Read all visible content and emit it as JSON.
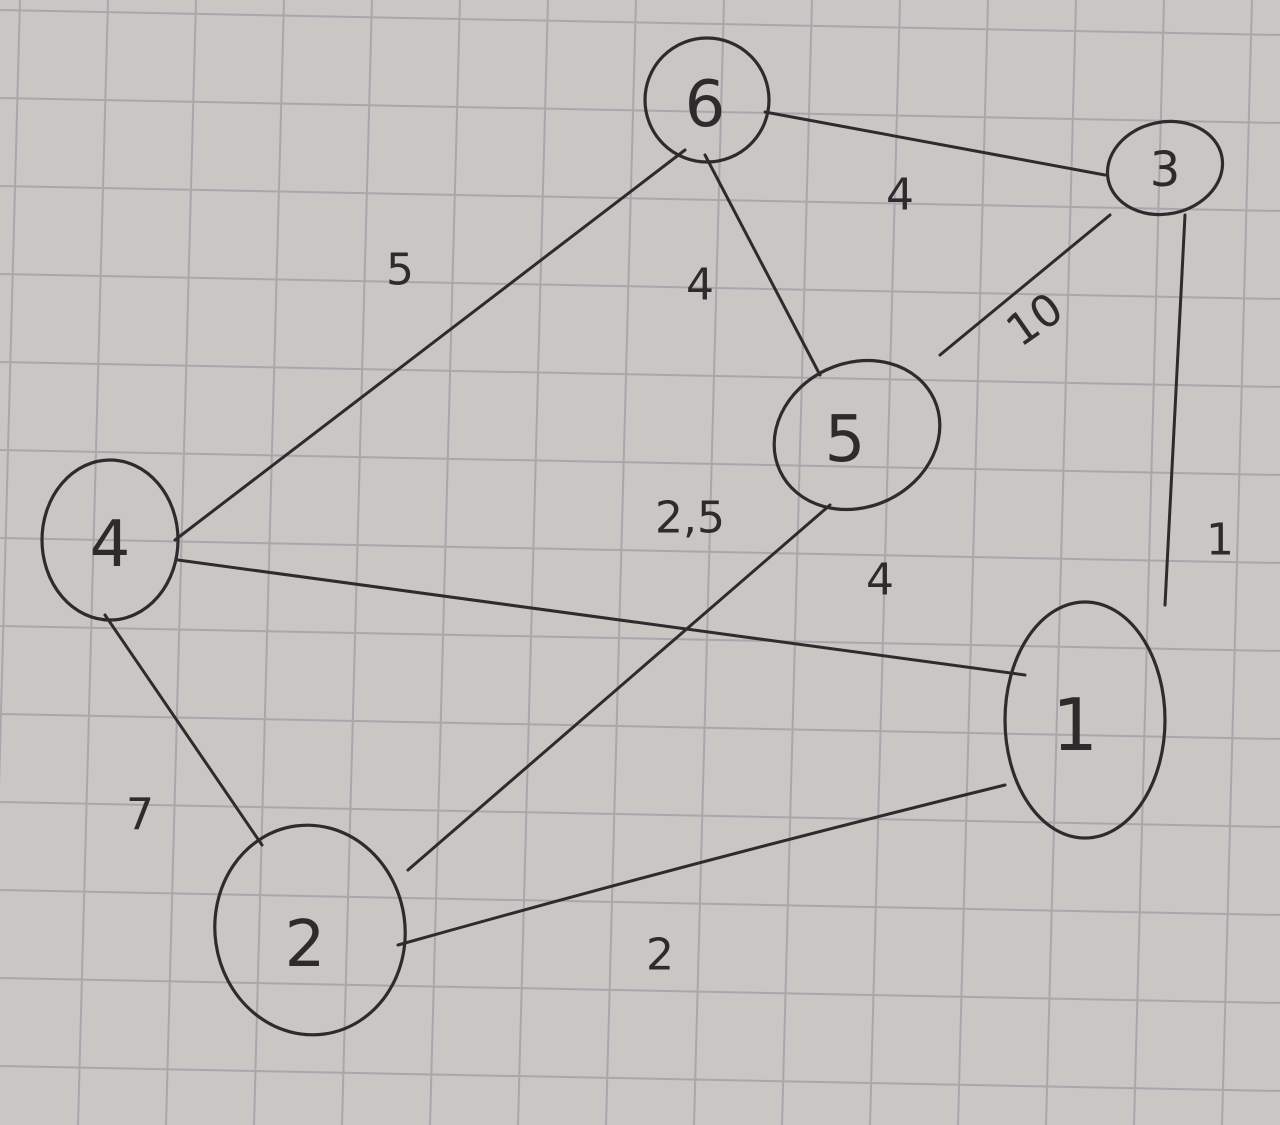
{
  "colors": {
    "paper": "#c9c6c4",
    "grid": "#a6a8ad",
    "ink": "#2d2b2c"
  },
  "graph": {
    "nodes": [
      {
        "id": "n1",
        "label": "1"
      },
      {
        "id": "n2",
        "label": "2"
      },
      {
        "id": "n3",
        "label": "3"
      },
      {
        "id": "n4",
        "label": "4"
      },
      {
        "id": "n5",
        "label": "5"
      },
      {
        "id": "n6",
        "label": "6"
      }
    ],
    "edges": [
      {
        "from": "6",
        "to": "3",
        "weight": "4"
      },
      {
        "from": "6",
        "to": "4",
        "weight": "5"
      },
      {
        "from": "6",
        "to": "5",
        "weight": "4"
      },
      {
        "from": "3",
        "to": "5",
        "weight": "10"
      },
      {
        "from": "3",
        "to": "1",
        "weight": "1"
      },
      {
        "from": "4",
        "to": "1",
        "weight": "4"
      },
      {
        "from": "4",
        "to": "2",
        "weight": "7"
      },
      {
        "from": "5",
        "to": "2",
        "weight": "2,5"
      },
      {
        "from": "2",
        "to": "1",
        "weight": "2"
      }
    ]
  }
}
